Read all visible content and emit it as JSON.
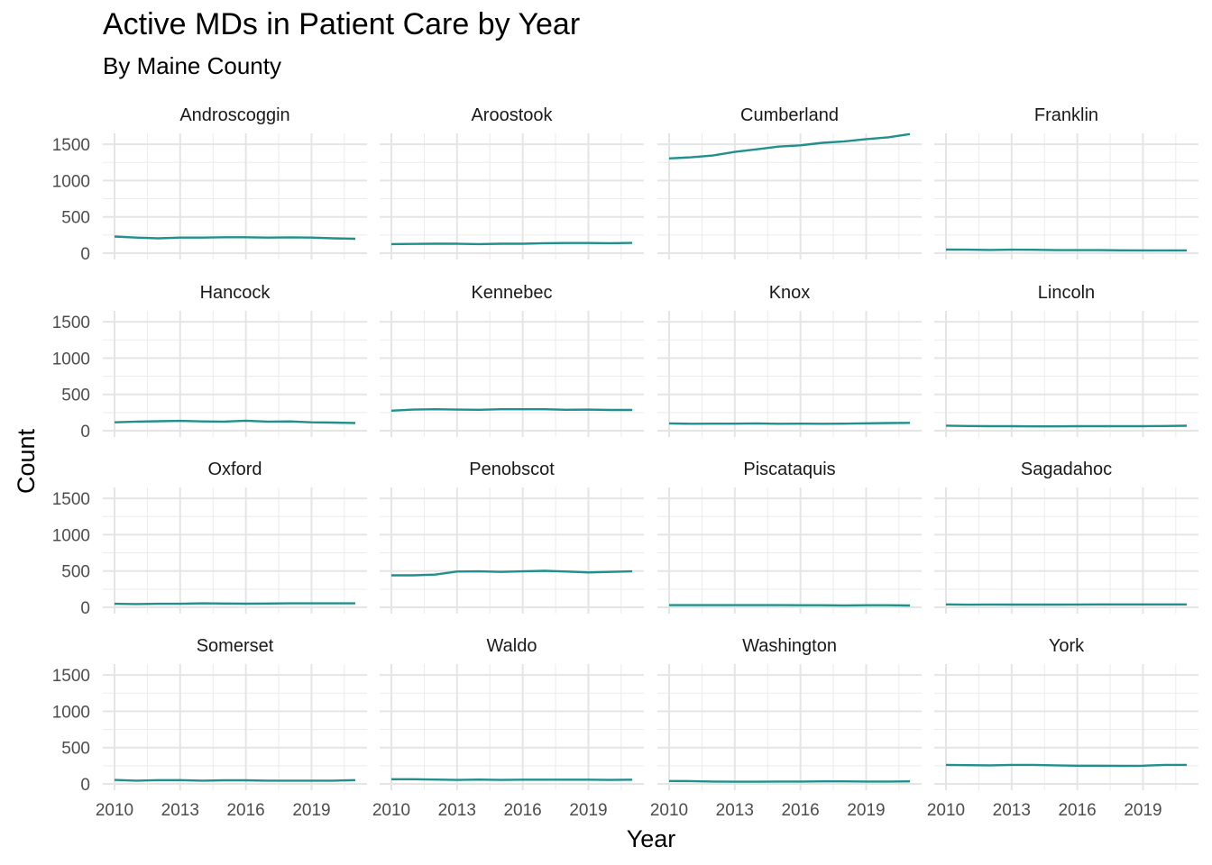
{
  "chart_data": {
    "type": "line",
    "title": "Active MDs in Patient Care by Year",
    "subtitle": "By Maine County",
    "xlabel": "Year",
    "ylabel": "Count",
    "x": [
      2010,
      2011,
      2012,
      2013,
      2014,
      2015,
      2016,
      2017,
      2018,
      2019,
      2020,
      2021
    ],
    "xlim": [
      2010,
      2021
    ],
    "ylim": [
      0,
      1650
    ],
    "x_ticks": [
      2010,
      2013,
      2016,
      2019
    ],
    "y_ticks": [
      0,
      500,
      1000,
      1500
    ],
    "grid": true,
    "line_color": "#21908C",
    "panels": [
      {
        "name": "Androscoggin",
        "values": [
          230,
          215,
          205,
          215,
          215,
          220,
          220,
          215,
          218,
          215,
          205,
          198
        ]
      },
      {
        "name": "Aroostook",
        "values": [
          125,
          128,
          130,
          130,
          125,
          130,
          130,
          138,
          140,
          140,
          138,
          142
        ]
      },
      {
        "name": "Cumberland",
        "values": [
          1305,
          1320,
          1345,
          1395,
          1430,
          1468,
          1485,
          1520,
          1540,
          1570,
          1595,
          1640
        ]
      },
      {
        "name": "Franklin",
        "values": [
          50,
          48,
          45,
          48,
          47,
          42,
          42,
          42,
          40,
          38,
          38,
          38
        ]
      },
      {
        "name": "Hancock",
        "values": [
          115,
          125,
          130,
          135,
          128,
          125,
          138,
          125,
          128,
          115,
          112,
          105
        ]
      },
      {
        "name": "Kennebec",
        "values": [
          275,
          290,
          295,
          290,
          288,
          295,
          295,
          295,
          288,
          290,
          285,
          285
        ]
      },
      {
        "name": "Knox",
        "values": [
          100,
          95,
          97,
          97,
          100,
          95,
          97,
          95,
          97,
          102,
          105,
          108
        ]
      },
      {
        "name": "Lincoln",
        "values": [
          70,
          65,
          62,
          62,
          60,
          60,
          62,
          62,
          62,
          62,
          65,
          68
        ]
      },
      {
        "name": "Oxford",
        "values": [
          48,
          45,
          48,
          48,
          55,
          52,
          50,
          52,
          55,
          55,
          55,
          55
        ]
      },
      {
        "name": "Penobscot",
        "values": [
          440,
          440,
          450,
          492,
          495,
          488,
          495,
          502,
          492,
          480,
          488,
          495
        ]
      },
      {
        "name": "Piscataquis",
        "values": [
          30,
          30,
          30,
          30,
          30,
          30,
          28,
          28,
          26,
          28,
          28,
          25
        ]
      },
      {
        "name": "Sagadahoc",
        "values": [
          40,
          36,
          38,
          37,
          37,
          37,
          38,
          40,
          40,
          40,
          40,
          40
        ]
      },
      {
        "name": "Somerset",
        "values": [
          55,
          45,
          52,
          52,
          45,
          50,
          50,
          45,
          45,
          45,
          45,
          52
        ]
      },
      {
        "name": "Waldo",
        "values": [
          65,
          65,
          60,
          55,
          60,
          55,
          58,
          58,
          58,
          58,
          55,
          58
        ]
      },
      {
        "name": "Washington",
        "values": [
          40,
          38,
          32,
          30,
          30,
          32,
          32,
          35,
          35,
          32,
          32,
          35
        ]
      },
      {
        "name": "York",
        "values": [
          262,
          258,
          255,
          262,
          262,
          255,
          250,
          250,
          248,
          250,
          262,
          262
        ]
      }
    ]
  }
}
